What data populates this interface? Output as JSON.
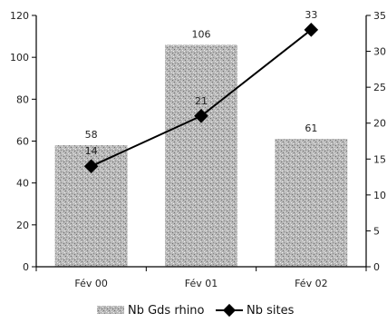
{
  "chart_data": {
    "type": "bar",
    "categories": [
      "Fév 00",
      "Fév 01",
      "Fév 02"
    ],
    "series": [
      {
        "name": "Nb Gds rhino",
        "type": "bar",
        "axis": "left",
        "values": [
          58,
          106,
          61
        ],
        "color": "#b4b4b4"
      },
      {
        "name": "Nb sites",
        "type": "line",
        "axis": "right",
        "values": [
          14,
          21,
          33
        ],
        "color": "#000000"
      }
    ],
    "y_left": {
      "min": 0,
      "max": 120,
      "ticks": [
        0,
        20,
        40,
        60,
        80,
        100,
        120
      ]
    },
    "y_right": {
      "min": 0,
      "max": 35,
      "ticks": [
        0,
        5,
        10,
        15,
        20,
        25,
        30,
        35
      ]
    },
    "legend": {
      "position": "bottom",
      "items": [
        "Nb Gds rhino",
        "Nb sites"
      ]
    },
    "grid": false
  }
}
